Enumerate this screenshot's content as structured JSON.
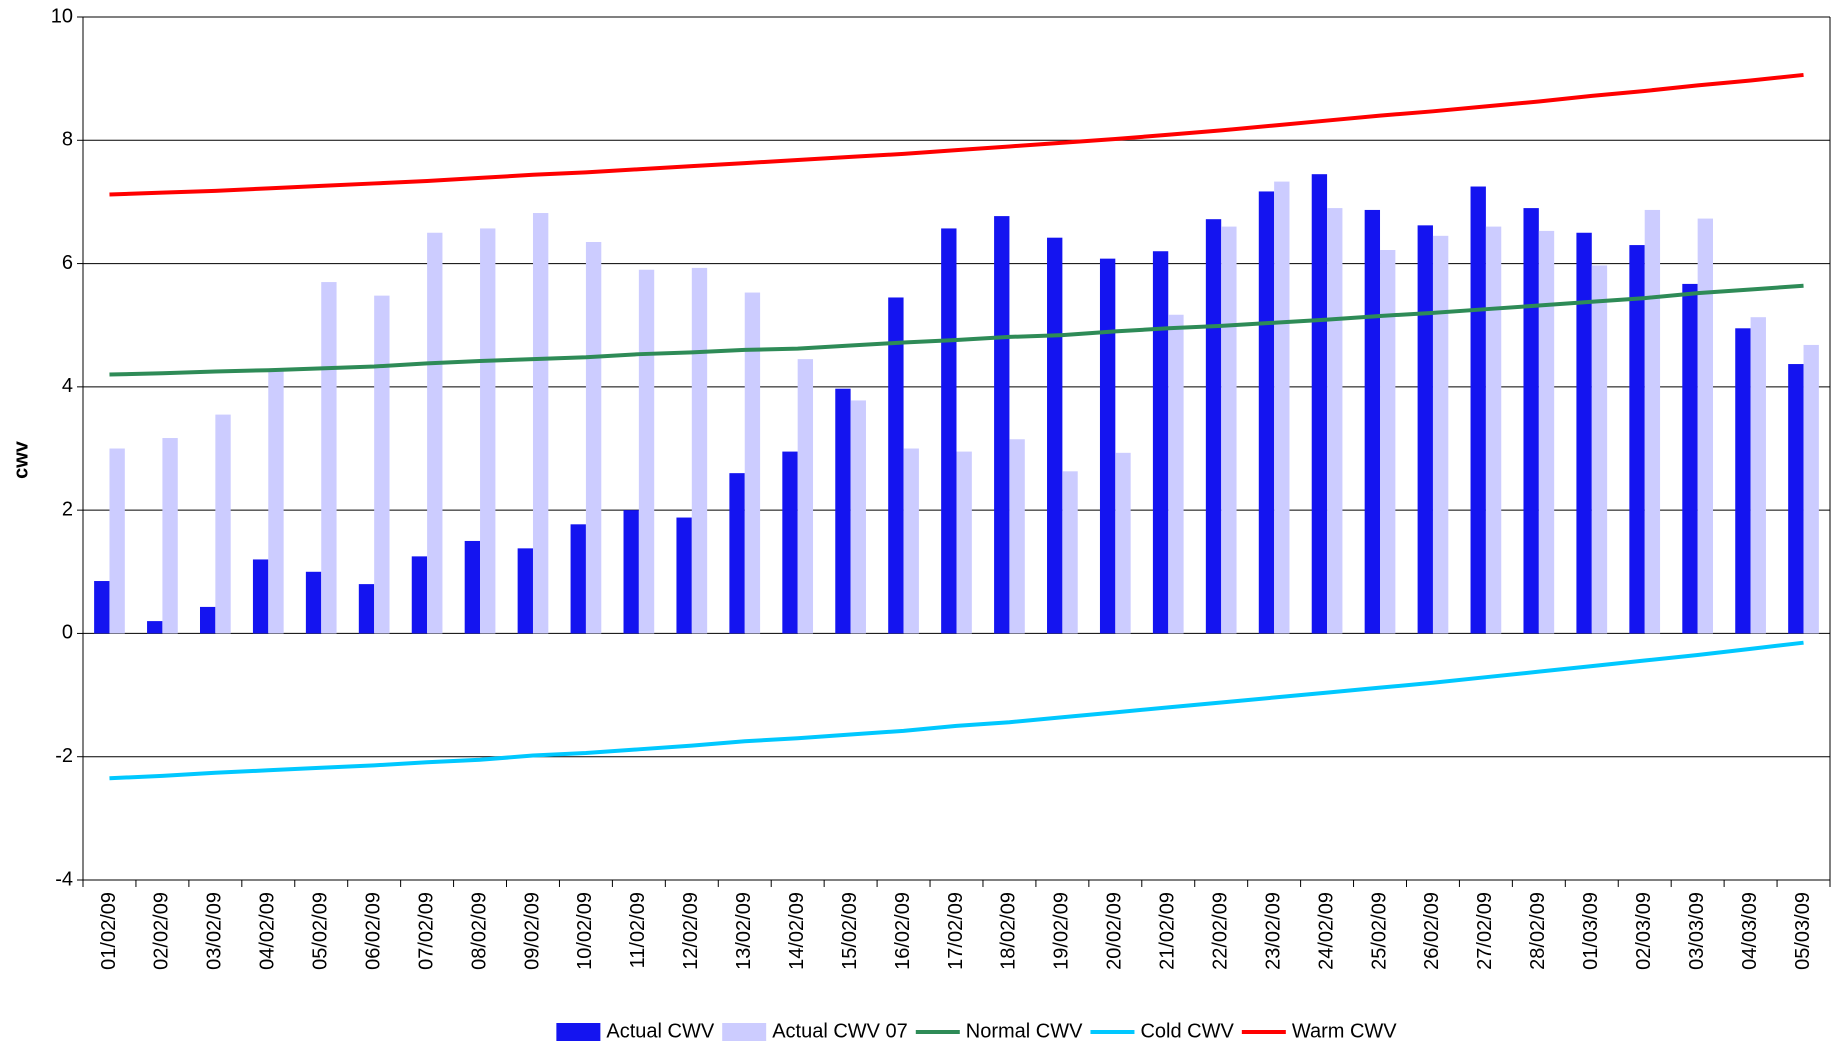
{
  "chart_data": {
    "type": "bar_line",
    "ylabel": "cwv",
    "categories": [
      "01/02/09",
      "02/02/09",
      "03/02/09",
      "04/02/09",
      "05/02/09",
      "06/02/09",
      "07/02/09",
      "08/02/09",
      "09/02/09",
      "10/02/09",
      "11/02/09",
      "12/02/09",
      "13/02/09",
      "14/02/09",
      "15/02/09",
      "16/02/09",
      "17/02/09",
      "18/02/09",
      "19/02/09",
      "20/02/09",
      "21/02/09",
      "22/02/09",
      "23/02/09",
      "24/02/09",
      "25/02/09",
      "26/02/09",
      "27/02/09",
      "28/02/09",
      "01/03/09",
      "02/03/09",
      "03/03/09",
      "04/03/09",
      "05/03/09"
    ],
    "series": [
      {
        "name": "Actual CWV",
        "kind": "bar",
        "color": "#1414f0",
        "values": [
          0.85,
          0.2,
          0.43,
          1.2,
          1.0,
          0.8,
          1.25,
          1.5,
          1.38,
          1.77,
          2.0,
          1.88,
          2.6,
          2.95,
          3.97,
          5.45,
          6.57,
          6.77,
          6.42,
          6.08,
          6.2,
          6.72,
          7.17,
          7.45,
          6.87,
          6.62,
          7.25,
          6.9,
          6.5,
          6.3,
          5.67,
          4.95,
          4.37
        ]
      },
      {
        "name": "Actual CWV 07",
        "kind": "bar",
        "color": "#ccccff",
        "values": [
          3.0,
          3.17,
          3.55,
          4.25,
          5.7,
          5.48,
          6.5,
          6.57,
          6.82,
          6.35,
          5.9,
          5.93,
          5.53,
          4.45,
          3.78,
          3.0,
          2.95,
          3.15,
          2.63,
          2.93,
          5.17,
          6.6,
          7.33,
          6.9,
          6.22,
          6.45,
          6.6,
          6.53,
          5.97,
          6.87,
          6.73,
          5.13,
          4.68
        ]
      },
      {
        "name": "Normal CWV",
        "kind": "line",
        "color": "#2e8b57",
        "values": [
          4.2,
          4.22,
          4.25,
          4.27,
          4.3,
          4.33,
          4.38,
          4.42,
          4.45,
          4.48,
          4.53,
          4.56,
          4.6,
          4.62,
          4.67,
          4.72,
          4.76,
          4.81,
          4.84,
          4.9,
          4.95,
          4.99,
          5.04,
          5.09,
          5.15,
          5.2,
          5.26,
          5.32,
          5.38,
          5.44,
          5.52,
          5.58,
          5.64
        ]
      },
      {
        "name": "Cold CWV",
        "kind": "line",
        "color": "#00c8ff",
        "values": [
          -2.35,
          -2.31,
          -2.26,
          -2.22,
          -2.18,
          -2.14,
          -2.09,
          -2.05,
          -1.98,
          -1.94,
          -1.88,
          -1.82,
          -1.75,
          -1.7,
          -1.64,
          -1.58,
          -1.5,
          -1.44,
          -1.36,
          -1.28,
          -1.2,
          -1.12,
          -1.04,
          -0.96,
          -0.88,
          -0.8,
          -0.71,
          -0.62,
          -0.53,
          -0.44,
          -0.35,
          -0.25,
          -0.15
        ]
      },
      {
        "name": "Warm CWV",
        "kind": "line",
        "color": "#ff0000",
        "values": [
          7.12,
          7.15,
          7.18,
          7.22,
          7.26,
          7.3,
          7.34,
          7.39,
          7.44,
          7.48,
          7.53,
          7.58,
          7.63,
          7.68,
          7.73,
          7.78,
          7.84,
          7.9,
          7.96,
          8.02,
          8.09,
          8.16,
          8.24,
          8.32,
          8.4,
          8.47,
          8.55,
          8.63,
          8.72,
          8.8,
          8.89,
          8.97,
          9.06
        ]
      }
    ],
    "ylim": [
      -4,
      10
    ],
    "yticks": [
      -4,
      -2,
      0,
      2,
      4,
      6,
      8,
      10
    ],
    "grid": true,
    "legend": "bottom"
  }
}
